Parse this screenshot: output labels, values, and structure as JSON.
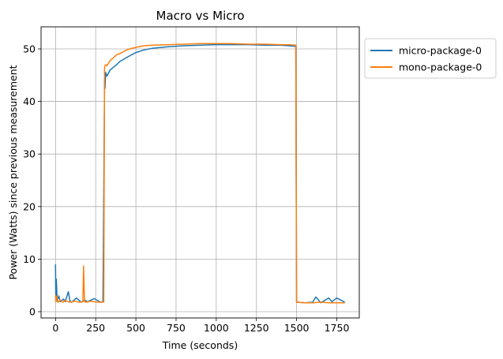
{
  "chart_data": {
    "type": "line",
    "title": "Macro vs Micro",
    "xlabel": "Time (seconds)",
    "ylabel": "Power (Watts) since previous measurement",
    "xlim": [
      -90,
      1890
    ],
    "ylim": [
      -1.2,
      54.2
    ],
    "xticks": [
      0,
      250,
      500,
      750,
      1000,
      1250,
      1500,
      1750
    ],
    "yticks": [
      0,
      10,
      20,
      30,
      40,
      50
    ],
    "grid": true,
    "legend_position": "outside-upper-right",
    "series": [
      {
        "name": "micro-package-0",
        "color": "#1f77b4",
        "x": [
          0,
          2,
          5,
          10,
          20,
          30,
          50,
          60,
          80,
          90,
          100,
          130,
          160,
          180,
          200,
          240,
          280,
          295,
          303,
          305,
          308,
          312,
          320,
          340,
          360,
          380,
          400,
          450,
          500,
          550,
          600,
          700,
          800,
          900,
          1000,
          1100,
          1200,
          1300,
          1400,
          1450,
          1495,
          1500,
          1505,
          1550,
          1600,
          1620,
          1650,
          1700,
          1720,
          1750,
          1800
        ],
        "y": [
          9.0,
          2.5,
          6.2,
          2.0,
          3.0,
          1.9,
          2.4,
          1.9,
          3.8,
          2.0,
          1.8,
          2.6,
          1.8,
          2.2,
          1.9,
          2.5,
          1.8,
          1.9,
          34.2,
          44.0,
          42.5,
          45.5,
          44.8,
          46.0,
          46.5,
          47.0,
          47.6,
          48.5,
          49.3,
          49.8,
          50.1,
          50.4,
          50.6,
          50.7,
          50.8,
          50.8,
          50.8,
          50.7,
          50.7,
          50.6,
          50.5,
          1.8,
          1.8,
          1.7,
          1.8,
          2.8,
          1.7,
          2.6,
          1.9,
          2.6,
          1.8
        ]
      },
      {
        "name": "mono-package-0",
        "color": "#ff7f0e",
        "x": [
          0,
          3,
          8,
          15,
          30,
          45,
          60,
          90,
          120,
          150,
          170,
          175,
          180,
          190,
          220,
          260,
          295,
          300,
          305,
          310,
          320,
          340,
          360,
          380,
          400,
          450,
          500,
          550,
          600,
          700,
          800,
          900,
          1000,
          1100,
          1200,
          1300,
          1400,
          1450,
          1495,
          1500,
          1505,
          1550,
          1600,
          1650,
          1700,
          1750,
          1800
        ],
        "y": [
          3.2,
          1.9,
          2.9,
          1.8,
          2.2,
          1.8,
          2.1,
          1.8,
          2.0,
          1.8,
          1.9,
          8.7,
          1.9,
          1.8,
          2.0,
          1.8,
          1.8,
          1.9,
          46.5,
          47.0,
          46.8,
          47.8,
          48.3,
          48.9,
          49.1,
          49.9,
          50.3,
          50.6,
          50.7,
          50.8,
          50.9,
          51.0,
          51.0,
          51.0,
          50.9,
          50.9,
          50.8,
          50.8,
          50.7,
          1.8,
          1.8,
          1.7,
          1.7,
          1.8,
          1.7,
          1.7,
          1.7
        ]
      }
    ]
  }
}
